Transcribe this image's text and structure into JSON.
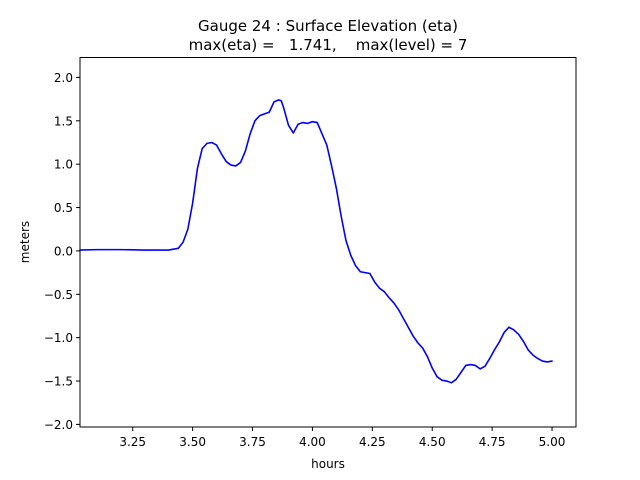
{
  "chart_data": {
    "type": "line",
    "title_line1": "Gauge 24 : Surface Elevation (eta)",
    "title_line2": "max(eta) =   1.741,    max(level) = 7",
    "xlabel": "hours",
    "ylabel": "meters",
    "xlim": [
      3.03,
      5.1
    ],
    "ylim": [
      -2.03,
      2.23
    ],
    "x_ticks": [
      3.25,
      3.5,
      3.75,
      4.0,
      4.25,
      4.5,
      4.75,
      5.0
    ],
    "x_tick_labels": [
      "3.25",
      "3.50",
      "3.75",
      "4.00",
      "4.25",
      "4.50",
      "4.75",
      "5.00"
    ],
    "y_ticks": [
      2.0,
      1.5,
      1.0,
      0.5,
      0.0,
      -0.5,
      -1.0,
      -1.5,
      -2.0
    ],
    "y_tick_labels": [
      "2.0",
      "1.5",
      "1.0",
      "0.5",
      "0.0",
      "−0.5",
      "−1.0",
      "−1.5",
      "−2.0"
    ],
    "grid": false,
    "series": [
      {
        "name": "eta",
        "color": "#0000ff",
        "x": [
          3.03,
          3.1,
          3.2,
          3.3,
          3.4,
          3.44,
          3.46,
          3.48,
          3.5,
          3.52,
          3.54,
          3.56,
          3.58,
          3.6,
          3.62,
          3.64,
          3.66,
          3.68,
          3.7,
          3.72,
          3.74,
          3.76,
          3.78,
          3.8,
          3.82,
          3.84,
          3.86,
          3.87,
          3.88,
          3.9,
          3.92,
          3.94,
          3.96,
          3.98,
          4.0,
          4.02,
          4.04,
          4.06,
          4.08,
          4.1,
          4.12,
          4.14,
          4.16,
          4.18,
          4.2,
          4.22,
          4.24,
          4.26,
          4.28,
          4.3,
          4.32,
          4.34,
          4.36,
          4.38,
          4.4,
          4.42,
          4.44,
          4.46,
          4.48,
          4.5,
          4.52,
          4.54,
          4.56,
          4.58,
          4.6,
          4.62,
          4.64,
          4.66,
          4.68,
          4.7,
          4.72,
          4.74,
          4.76,
          4.78,
          4.8,
          4.82,
          4.84,
          4.86,
          4.88,
          4.9,
          4.92,
          4.94,
          4.96,
          4.98,
          5.0
        ],
        "y": [
          0.01,
          0.015,
          0.015,
          0.01,
          0.01,
          0.03,
          0.1,
          0.25,
          0.55,
          0.95,
          1.18,
          1.24,
          1.25,
          1.22,
          1.12,
          1.03,
          0.99,
          0.98,
          1.02,
          1.15,
          1.35,
          1.5,
          1.56,
          1.58,
          1.6,
          1.72,
          1.741,
          1.73,
          1.65,
          1.45,
          1.36,
          1.46,
          1.48,
          1.47,
          1.49,
          1.48,
          1.35,
          1.22,
          0.98,
          0.72,
          0.4,
          0.12,
          -0.05,
          -0.17,
          -0.24,
          -0.25,
          -0.26,
          -0.36,
          -0.43,
          -0.47,
          -0.54,
          -0.6,
          -0.68,
          -0.78,
          -0.88,
          -0.98,
          -1.06,
          -1.12,
          -1.22,
          -1.35,
          -1.45,
          -1.49,
          -1.5,
          -1.52,
          -1.48,
          -1.4,
          -1.32,
          -1.31,
          -1.32,
          -1.36,
          -1.33,
          -1.24,
          -1.14,
          -1.05,
          -0.94,
          -0.88,
          -0.91,
          -0.96,
          -1.04,
          -1.14,
          -1.2,
          -1.24,
          -1.27,
          -1.28,
          -1.27
        ]
      }
    ]
  }
}
